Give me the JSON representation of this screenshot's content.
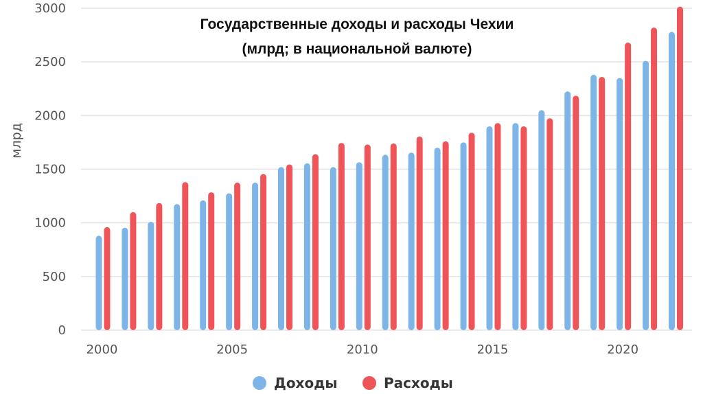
{
  "chart_data": {
    "type": "bar",
    "title": "Государственные доходы и расходы Чехии",
    "subtitle": "(млрд; в национальной валюте)",
    "ylabel": "млрд",
    "xlabel": "",
    "ylim": [
      0,
      3000
    ],
    "yticks": [
      0,
      500,
      1000,
      1500,
      2000,
      2500,
      3000
    ],
    "xticks": [
      2000,
      2005,
      2010,
      2015,
      2020
    ],
    "grid": true,
    "legend": "bottom-center",
    "categories": [
      2000,
      2001,
      2002,
      2003,
      2004,
      2005,
      2006,
      2007,
      2008,
      2009,
      2010,
      2011,
      2012,
      2013,
      2014,
      2015,
      2016,
      2017,
      2018,
      2019,
      2020,
      2021,
      2022
    ],
    "series": [
      {
        "name": "Доходы",
        "color": "#7eb5e8",
        "values": [
          880,
          955,
          1010,
          1175,
          1210,
          1275,
          1375,
          1520,
          1555,
          1520,
          1565,
          1635,
          1655,
          1700,
          1750,
          1900,
          1930,
          2050,
          2225,
          2380,
          2350,
          2510,
          2780
        ]
      },
      {
        "name": "Расходы",
        "color": "#ef5459",
        "values": [
          960,
          1100,
          1185,
          1380,
          1285,
          1375,
          1455,
          1545,
          1640,
          1745,
          1730,
          1740,
          1805,
          1760,
          1840,
          1930,
          1900,
          1975,
          2185,
          2360,
          2680,
          2820,
          3015
        ]
      }
    ]
  }
}
